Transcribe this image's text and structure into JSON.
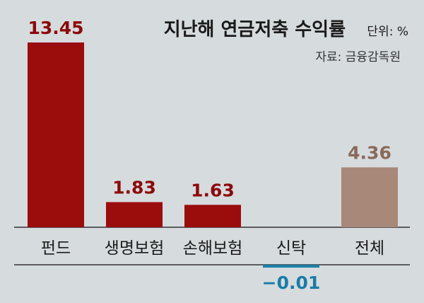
{
  "chart_data": {
    "type": "bar",
    "title": "지난해 연금저축 수익률",
    "unit_label": "단위: %",
    "source": "자료: 금융감독원",
    "categories": [
      "펀드",
      "생명보험",
      "손해보험",
      "신탁",
      "전체"
    ],
    "values": [
      13.45,
      1.83,
      1.63,
      -0.01,
      4.36
    ],
    "value_labels": [
      "13.45",
      "1.83",
      "1.63",
      "−0.01",
      "4.36"
    ],
    "xlabel": "",
    "ylabel": "",
    "ylim": [
      -1.5,
      13.45
    ],
    "grid": false,
    "legend": "none",
    "colors": {
      "positive_bar": "#9b0c0c",
      "total_bar": "#a88878",
      "negative_bar": "#1c7fa8",
      "positive_label": "#8b0a0a",
      "total_label": "#8a6a5a",
      "negative_label": "#1a7ca6",
      "baseline": "#333333",
      "background": "#d6dbde"
    }
  }
}
